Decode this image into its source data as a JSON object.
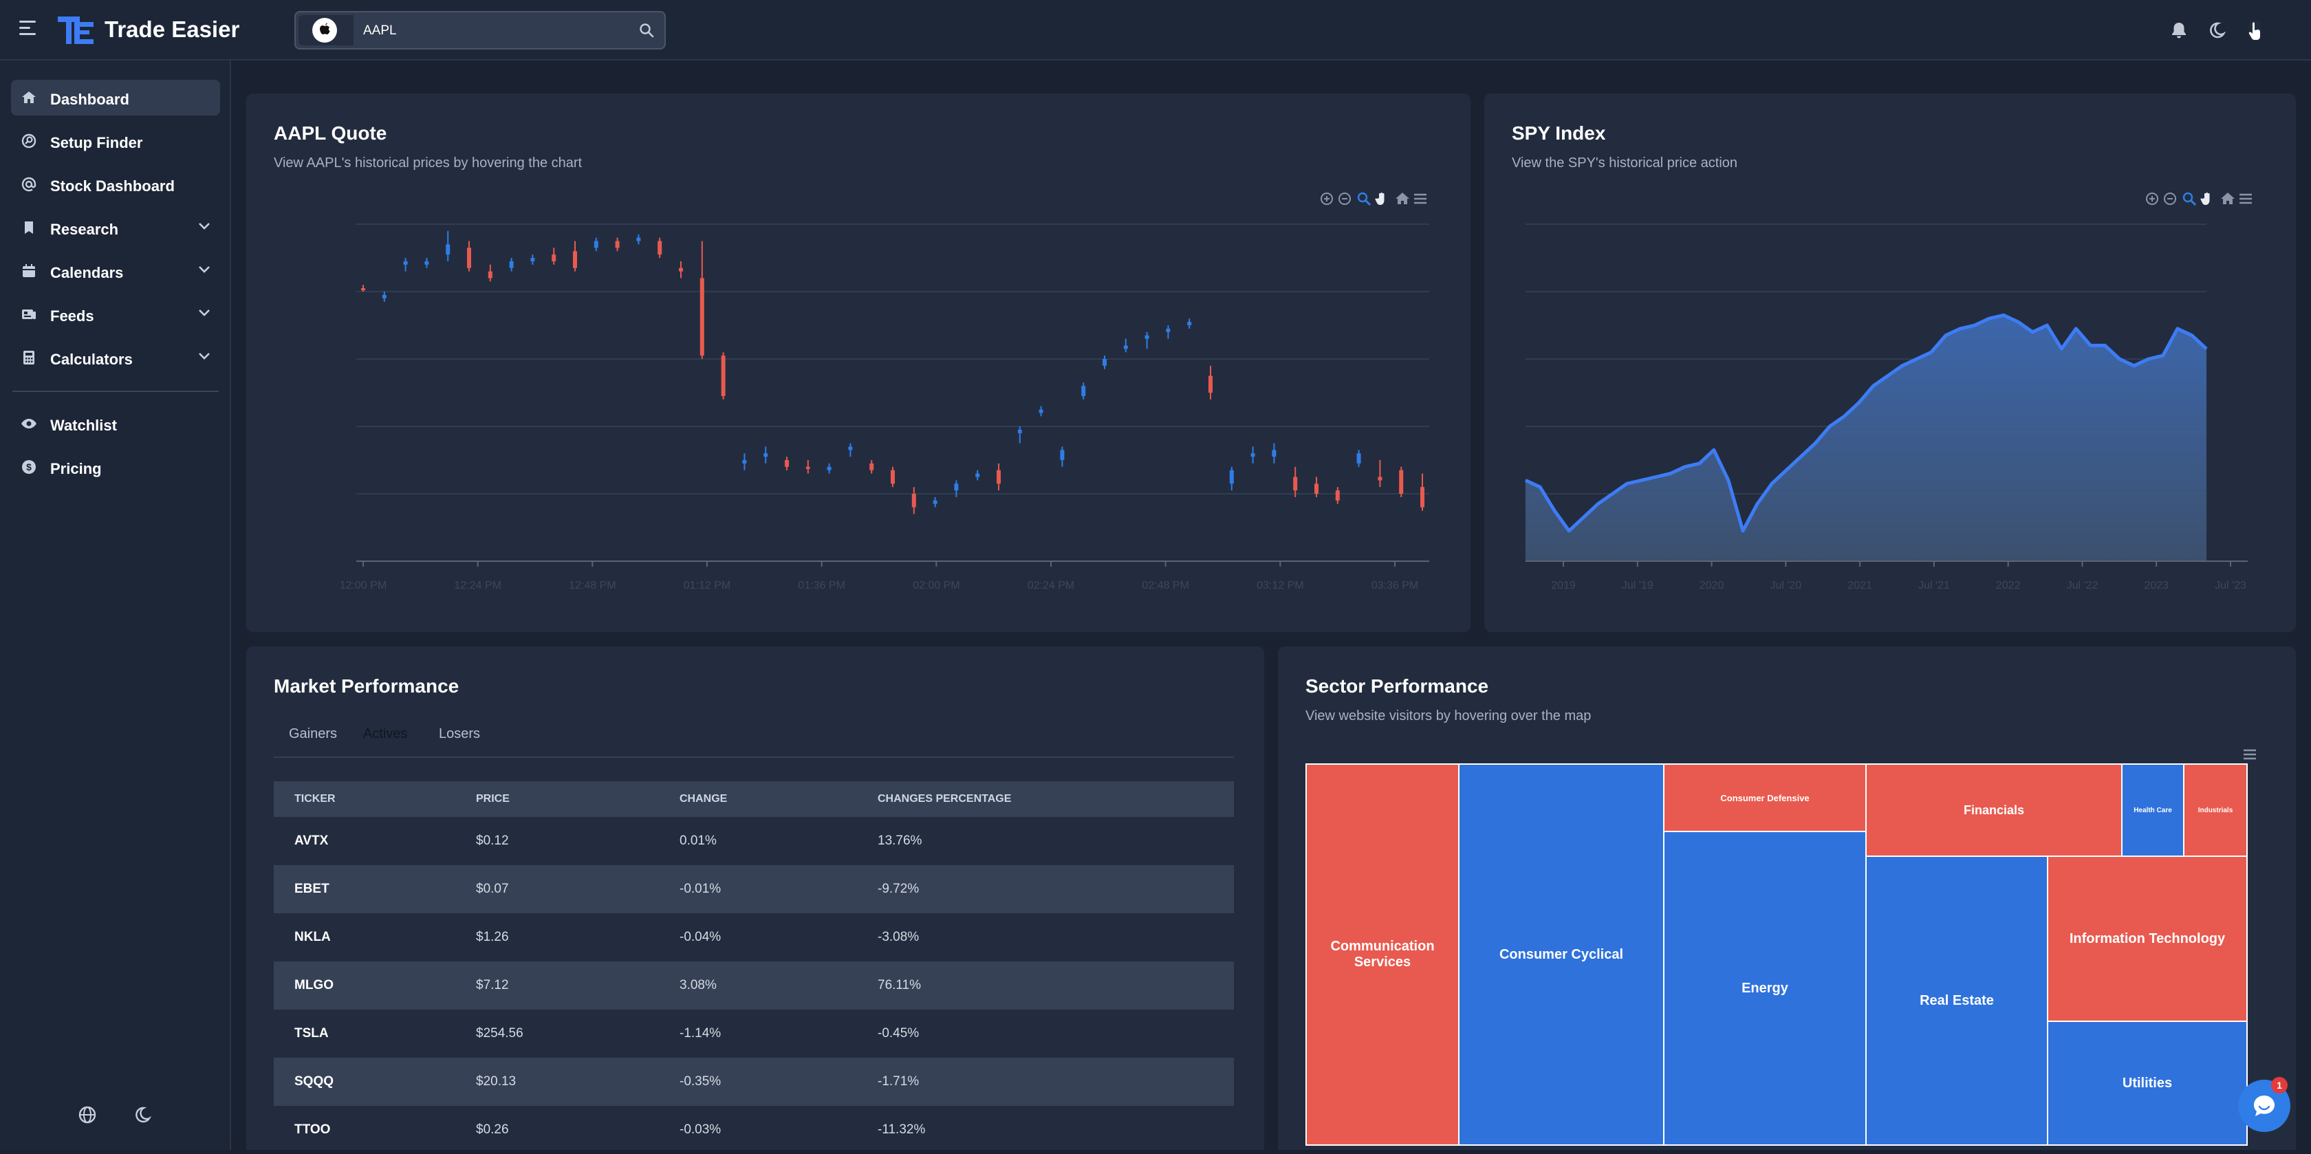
{
  "app": {
    "title": "Trade Easier"
  },
  "search": {
    "value": "AAPL",
    "ticker_icon": "apple-logo-icon"
  },
  "header_icons": [
    "bell-icon",
    "moon-icon",
    "user-avatar-icon"
  ],
  "sidebar": {
    "items": [
      {
        "label": "Dashboard",
        "icon": "home-icon",
        "active": true,
        "expandable": false
      },
      {
        "label": "Setup Finder",
        "icon": "setup-finder-icon",
        "expandable": false
      },
      {
        "label": "Stock Dashboard",
        "icon": "at-sign-icon",
        "expandable": false
      },
      {
        "label": "Research",
        "icon": "bookmark-icon",
        "expandable": true
      },
      {
        "label": "Calendars",
        "icon": "calendar-icon",
        "expandable": true
      },
      {
        "label": "Feeds",
        "icon": "feed-icon",
        "expandable": true
      },
      {
        "label": "Calculators",
        "icon": "calculator-icon",
        "expandable": true
      },
      {
        "label": "Watchlist",
        "icon": "eye-icon",
        "expandable": false
      },
      {
        "label": "Pricing",
        "icon": "dollar-icon",
        "expandable": false
      }
    ],
    "bottom_icons": [
      "globe-icon",
      "moon-icon"
    ]
  },
  "quote_card": {
    "title": "AAPL Quote",
    "subtitle": "View AAPL's historical prices by hovering the chart"
  },
  "spy_card": {
    "title": "SPY Index",
    "subtitle": "View the SPY's historical price action"
  },
  "chart_toolbar": [
    "zoom-in-icon",
    "zoom-out-icon",
    "selection-zoom-icon",
    "pan-hand-icon",
    "reset-home-icon",
    "menu-icon"
  ],
  "market_card": {
    "title": "Market Performance",
    "tabs": [
      "Gainers",
      "Actives",
      "Losers"
    ],
    "active_tab": "Actives",
    "columns": [
      "TICKER",
      "PRICE",
      "CHANGE",
      "CHANGES PERCENTAGE"
    ],
    "rows": [
      {
        "ticker": "AVTX",
        "price": "$0.12",
        "change": "0.01%",
        "pct": "13.76%",
        "dir": "pos"
      },
      {
        "ticker": "EBET",
        "price": "$0.07",
        "change": "-0.01%",
        "pct": "-9.72%",
        "dir": "neg"
      },
      {
        "ticker": "NKLA",
        "price": "$1.26",
        "change": "-0.04%",
        "pct": "-3.08%",
        "dir": "neg"
      },
      {
        "ticker": "MLGO",
        "price": "$7.12",
        "change": "3.08%",
        "pct": "76.11%",
        "dir": "pos"
      },
      {
        "ticker": "TSLA",
        "price": "$254.56",
        "change": "-1.14%",
        "pct": "-0.45%",
        "dir": "neg"
      },
      {
        "ticker": "SQQQ",
        "price": "$20.13",
        "change": "-0.35%",
        "pct": "-1.71%",
        "dir": "neg"
      },
      {
        "ticker": "TTOO",
        "price": "$0.26",
        "change": "-0.03%",
        "pct": "-11.32%",
        "dir": "neg"
      }
    ]
  },
  "sector_card": {
    "title": "Sector Performance",
    "subtitle": "View website visitors by hovering over the map",
    "menu_icon": "menu-icon"
  },
  "chat": {
    "icon": "chat-icon",
    "badge": "1"
  },
  "colors": {
    "accent": "#2f7de6",
    "up": "#2f7de6",
    "down": "#e85a4f",
    "pos_text": "#2f9e6a",
    "neg_text": "#f25555"
  },
  "chart_data": [
    {
      "type": "candlestick",
      "title": "AAPL Quote",
      "x_ticks": [
        "12:00 PM",
        "12:24 PM",
        "12:48 PM",
        "01:12 PM",
        "01:36 PM",
        "02:00 PM",
        "02:24 PM",
        "02:48 PM",
        "03:12 PM",
        "03:36 PM"
      ],
      "y_ticks": [],
      "y_range": [
        0,
        100
      ],
      "grid": true,
      "candles": [
        {
          "c": [
            81,
            82,
            80,
            81
          ],
          "d": 0
        },
        {
          "c": [
            78,
            80,
            77,
            79
          ],
          "d": 1
        },
        {
          "c": [
            88,
            90,
            86,
            89
          ],
          "d": 1
        },
        {
          "c": [
            89,
            90,
            87,
            88
          ],
          "d": 1
        },
        {
          "c": [
            91,
            98,
            89,
            94
          ],
          "d": 1
        },
        {
          "c": [
            93,
            95,
            86,
            87
          ],
          "d": 0
        },
        {
          "c": [
            86,
            88,
            83,
            84
          ],
          "d": 0
        },
        {
          "c": [
            87,
            90,
            86,
            89
          ],
          "d": 1
        },
        {
          "c": [
            89,
            91,
            88,
            90
          ],
          "d": 1
        },
        {
          "c": [
            91,
            93,
            88,
            89
          ],
          "d": 0
        },
        {
          "c": [
            92,
            95,
            86,
            87
          ],
          "d": 0
        },
        {
          "c": [
            93,
            96,
            92,
            95
          ],
          "d": 1
        },
        {
          "c": [
            95,
            96,
            92,
            93
          ],
          "d": 0
        },
        {
          "c": [
            95,
            97,
            94,
            96
          ],
          "d": 1
        },
        {
          "c": [
            95,
            96,
            90,
            91
          ],
          "d": 0
        },
        {
          "c": [
            87,
            89,
            84,
            86
          ],
          "d": 0
        },
        {
          "c": [
            84,
            95,
            60,
            61
          ],
          "d": 0
        },
        {
          "c": [
            61,
            62,
            48,
            49
          ],
          "d": 0
        },
        {
          "c": [
            30,
            32,
            27,
            29
          ],
          "d": 1
        },
        {
          "c": [
            31,
            34,
            29,
            32
          ],
          "d": 1
        },
        {
          "c": [
            30,
            31,
            27,
            28
          ],
          "d": 0
        },
        {
          "c": [
            28,
            30,
            26,
            28
          ],
          "d": 0
        },
        {
          "c": [
            27,
            29,
            26,
            28
          ],
          "d": 1
        },
        {
          "c": [
            33,
            35,
            31,
            34
          ],
          "d": 1
        },
        {
          "c": [
            29,
            30,
            26,
            27
          ],
          "d": 0
        },
        {
          "c": [
            27,
            28,
            22,
            23
          ],
          "d": 0
        },
        {
          "c": [
            20,
            22,
            14,
            16
          ],
          "d": 0
        },
        {
          "c": [
            17,
            19,
            16,
            18
          ],
          "d": 1
        },
        {
          "c": [
            21,
            24,
            19,
            23
          ],
          "d": 1
        },
        {
          "c": [
            25,
            27,
            24,
            26
          ],
          "d": 1
        },
        {
          "c": [
            27,
            29,
            21,
            23
          ],
          "d": 0
        },
        {
          "c": [
            38,
            40,
            35,
            39
          ],
          "d": 1
        },
        {
          "c": [
            44,
            46,
            43,
            45
          ],
          "d": 1
        },
        {
          "c": [
            30,
            34,
            28,
            33
          ],
          "d": 1
        },
        {
          "c": [
            49,
            53,
            48,
            52
          ],
          "d": 1
        },
        {
          "c": [
            58,
            61,
            57,
            60
          ],
          "d": 1
        },
        {
          "c": [
            63,
            66,
            62,
            64
          ],
          "d": 1
        },
        {
          "c": [
            66,
            68,
            63,
            67
          ],
          "d": 1
        },
        {
          "c": [
            68,
            70,
            66,
            69
          ],
          "d": 1
        },
        {
          "c": [
            70,
            72,
            69,
            71
          ],
          "d": 1
        },
        {
          "c": [
            55,
            58,
            48,
            50
          ],
          "d": 0
        },
        {
          "c": [
            23,
            28,
            21,
            27
          ],
          "d": 1
        },
        {
          "c": [
            31,
            34,
            29,
            32
          ],
          "d": 1
        },
        {
          "c": [
            33,
            35,
            29,
            31
          ],
          "d": 1
        },
        {
          "c": [
            25,
            28,
            19,
            21
          ],
          "d": 0
        },
        {
          "c": [
            23,
            25,
            19,
            20
          ],
          "d": 0
        },
        {
          "c": [
            21,
            22,
            17,
            18
          ],
          "d": 0
        },
        {
          "c": [
            29,
            33,
            28,
            32
          ],
          "d": 1
        },
        {
          "c": [
            25,
            30,
            22,
            24
          ],
          "d": 0
        },
        {
          "c": [
            27,
            28,
            19,
            20
          ],
          "d": 0
        },
        {
          "c": [
            22,
            26,
            15,
            16
          ],
          "d": 0
        }
      ]
    },
    {
      "type": "area",
      "title": "SPY Index",
      "x_ticks": [
        "2019",
        "Jul '19",
        "2020",
        "Jul '20",
        "2021",
        "Jul '21",
        "2022",
        "Jul '22",
        "2023",
        "Jul '23"
      ],
      "y_ticks": [],
      "y_range": [
        0,
        100
      ],
      "grid": true,
      "values": [
        24,
        22,
        15,
        9,
        13,
        17,
        20,
        23,
        24,
        25,
        26,
        28,
        29,
        33,
        24,
        9,
        17,
        23,
        27,
        31,
        35,
        40,
        43,
        47,
        52,
        55,
        58,
        60,
        62,
        67,
        69,
        70,
        72,
        73,
        71,
        68,
        70,
        63,
        69,
        64,
        64,
        60,
        58,
        60,
        61,
        69,
        67,
        63
      ]
    },
    {
      "type": "treemap",
      "title": "Sector Performance",
      "cells": [
        {
          "label": "Communication Services",
          "dir": "down"
        },
        {
          "label": "Consumer Cyclical",
          "dir": "up"
        },
        {
          "label": "Consumer Defensive",
          "dir": "down"
        },
        {
          "label": "Energy",
          "dir": "up"
        },
        {
          "label": "Financials",
          "dir": "down"
        },
        {
          "label": "Health Care",
          "dir": "up"
        },
        {
          "label": "Industrials",
          "dir": "down"
        },
        {
          "label": "Real Estate",
          "dir": "up"
        },
        {
          "label": "Information Technology",
          "dir": "down"
        },
        {
          "label": "Utilities",
          "dir": "up"
        }
      ]
    }
  ]
}
